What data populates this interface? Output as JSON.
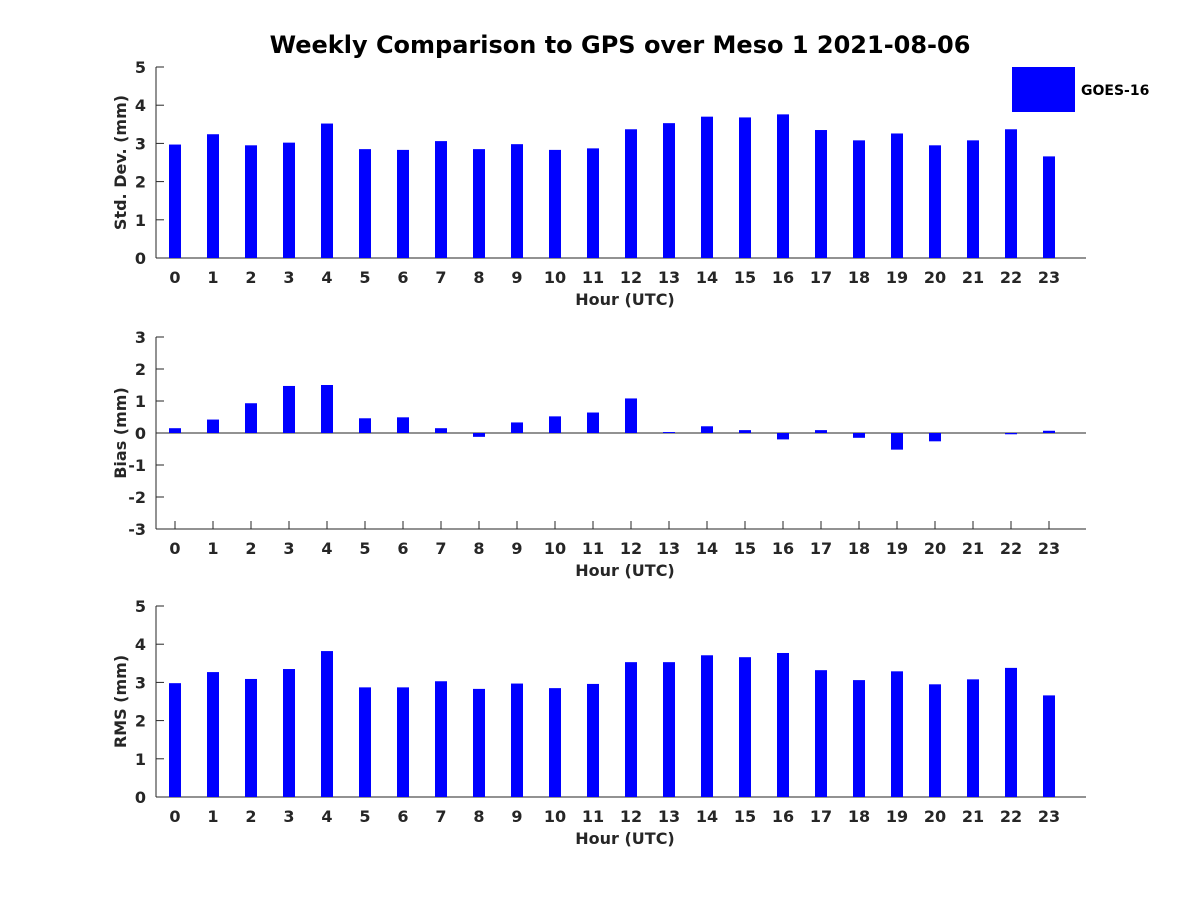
{
  "figure_title": "Weekly Comparison to GPS over Meso 1 2021-08-06",
  "legend": {
    "label": "GOES-16",
    "color": "#0000ff"
  },
  "chart_data": [
    {
      "type": "bar",
      "title": "Weekly Comparison to GPS over Meso 1 2021-08-06",
      "xlabel": "Hour (UTC)",
      "ylabel": "Std. Dev. (mm)",
      "ylim": [
        0,
        5
      ],
      "yticks": [
        "0",
        "1",
        "2",
        "3",
        "4",
        "5"
      ],
      "categories": [
        "0",
        "1",
        "2",
        "3",
        "4",
        "5",
        "6",
        "7",
        "8",
        "9",
        "10",
        "11",
        "12",
        "13",
        "14",
        "15",
        "16",
        "17",
        "18",
        "19",
        "20",
        "21",
        "22",
        "23"
      ],
      "series": [
        {
          "name": "GOES-16",
          "color": "#0000ff",
          "values": [
            2.97,
            3.24,
            2.95,
            3.02,
            3.52,
            2.85,
            2.83,
            3.06,
            2.85,
            2.98,
            2.83,
            2.87,
            3.37,
            3.53,
            3.7,
            3.68,
            3.76,
            3.35,
            3.08,
            3.26,
            2.95,
            3.08,
            3.37,
            2.66
          ]
        }
      ]
    },
    {
      "type": "bar",
      "xlabel": "Hour (UTC)",
      "ylabel": "Bias (mm)",
      "ylim": [
        -3,
        3
      ],
      "yticks": [
        "-3",
        "-2",
        "-1",
        "0",
        "1",
        "2",
        "3"
      ],
      "categories": [
        "0",
        "1",
        "2",
        "3",
        "4",
        "5",
        "6",
        "7",
        "8",
        "9",
        "10",
        "11",
        "12",
        "13",
        "14",
        "15",
        "16",
        "17",
        "18",
        "19",
        "20",
        "21",
        "22",
        "23"
      ],
      "series": [
        {
          "name": "GOES-16",
          "color": "#0000ff",
          "values": [
            0.15,
            0.42,
            0.93,
            1.47,
            1.5,
            0.46,
            0.49,
            0.15,
            -0.12,
            0.33,
            0.52,
            0.64,
            1.08,
            0.03,
            0.21,
            0.09,
            -0.2,
            0.09,
            -0.15,
            -0.52,
            -0.26,
            0.0,
            -0.04,
            0.07
          ]
        }
      ]
    },
    {
      "type": "bar",
      "xlabel": "Hour (UTC)",
      "ylabel": "RMS (mm)",
      "ylim": [
        0,
        5
      ],
      "yticks": [
        "0",
        "1",
        "2",
        "3",
        "4",
        "5"
      ],
      "categories": [
        "0",
        "1",
        "2",
        "3",
        "4",
        "5",
        "6",
        "7",
        "8",
        "9",
        "10",
        "11",
        "12",
        "13",
        "14",
        "15",
        "16",
        "17",
        "18",
        "19",
        "20",
        "21",
        "22",
        "23"
      ],
      "series": [
        {
          "name": "GOES-16",
          "color": "#0000ff",
          "values": [
            2.98,
            3.27,
            3.09,
            3.35,
            3.82,
            2.87,
            2.87,
            3.03,
            2.83,
            2.97,
            2.85,
            2.96,
            3.53,
            3.53,
            3.71,
            3.66,
            3.77,
            3.32,
            3.06,
            3.29,
            2.95,
            3.08,
            3.38,
            2.66
          ]
        }
      ]
    }
  ]
}
